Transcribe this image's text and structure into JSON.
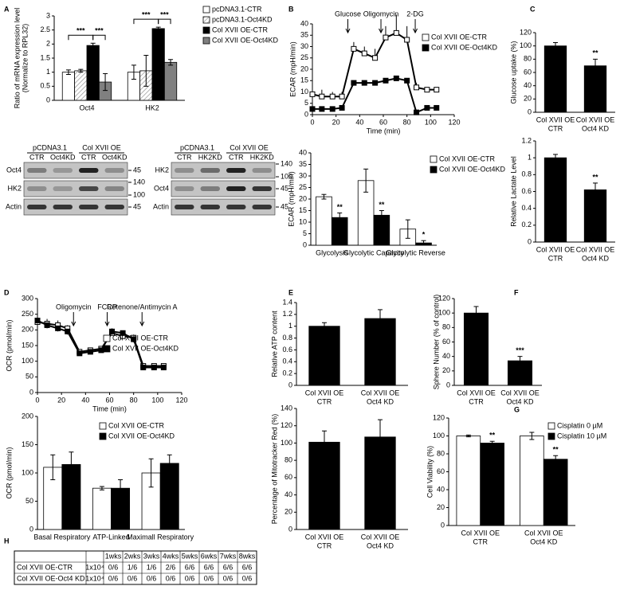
{
  "chart_data": [
    {
      "panel": "A",
      "type": "bar",
      "ylabel": [
        "Ratio of mRNA expression level",
        "(Normalize to RPL32)"
      ],
      "categories": [
        "Oct4",
        "HK2"
      ],
      "ylim": [
        0,
        3
      ],
      "yticks": [
        0,
        0.5,
        1,
        1.5,
        2,
        2.5,
        3
      ],
      "brackets": true,
      "series": [
        {
          "name": "pcDNA3.1-CTR",
          "color": "#ffffff",
          "values": [
            1.0,
            1.0
          ],
          "errors": [
            0.08,
            0.25
          ]
        },
        {
          "name": "pcDNA3.1-Oct4KD",
          "color": "#dddddd",
          "pattern": "hatch",
          "values": [
            1.05,
            1.05
          ],
          "errors": [
            0.05,
            0.55
          ]
        },
        {
          "name": "Col XVII OE-CTR",
          "color": "#000000",
          "values": [
            1.95,
            2.55
          ],
          "errors": [
            0.08,
            0.05
          ],
          "significance": [
            "***",
            "***"
          ]
        },
        {
          "name": "Col XVII OE-Oct4KD",
          "color": "#808080",
          "values": [
            0.65,
            1.35
          ],
          "errors": [
            0.3,
            0.1
          ],
          "significance": [
            "***",
            "***"
          ]
        }
      ]
    },
    {
      "panel": "B",
      "type": "line",
      "ylabel": "ECAR (mpH/min)",
      "xlabel": "Time (min)",
      "xlim": [
        0,
        120
      ],
      "xticks": [
        0,
        20,
        40,
        60,
        80,
        100,
        120
      ],
      "ylim": [
        0,
        40
      ],
      "yticks": [
        0,
        5,
        10,
        15,
        20,
        25,
        30,
        35,
        40
      ],
      "x": [
        0,
        8,
        17,
        25,
        35,
        44,
        53,
        62,
        71,
        80,
        88,
        97,
        105
      ],
      "annotations": [
        {
          "text": "Glucose",
          "x": 30
        },
        {
          "text": "Oligomycin",
          "x": 58
        },
        {
          "text": "2-DG",
          "x": 87
        }
      ],
      "series": [
        {
          "name": "Col XVII OE-CTR",
          "color": "#ffffff",
          "values": [
            9,
            8,
            8,
            8,
            29,
            27,
            25,
            34,
            36,
            33,
            12,
            11,
            11
          ],
          "errors": [
            3,
            3,
            2,
            2,
            3,
            3,
            4,
            5,
            8,
            6,
            2,
            1,
            1
          ]
        },
        {
          "name": "Col XVII OE-Oct4KD",
          "color": "#000000",
          "values": [
            2.5,
            2.5,
            2.5,
            3,
            14,
            14,
            14,
            15,
            16,
            15,
            1,
            3,
            3
          ],
          "errors": [
            1,
            1,
            1,
            1,
            1,
            1,
            1,
            1,
            1,
            1,
            1,
            1,
            1
          ]
        }
      ]
    },
    {
      "type": "bar",
      "ylabel": "ECAR (mpH/min)",
      "categories": [
        "Glycolysis",
        "Glycolytic Capacity",
        "Glycolytic Reverse"
      ],
      "ylim": [
        0,
        40
      ],
      "yticks": [
        0,
        5,
        10,
        15,
        20,
        25,
        30,
        35,
        40
      ],
      "series": [
        {
          "name": "Col XVII OE-CTR",
          "color": "#ffffff",
          "values": [
            21,
            28,
            7
          ],
          "errors": [
            1,
            5,
            4
          ]
        },
        {
          "name": "Col XVII OE-Oct4KD",
          "color": "#000000",
          "values": [
            12,
            13,
            1
          ],
          "errors": [
            2,
            2,
            1
          ],
          "significance": [
            "**",
            "**",
            "*"
          ]
        }
      ]
    },
    {
      "panel": "C",
      "type": "bar",
      "ylabel": "Glucose uptake (%)",
      "categories": [
        [
          "Col XVII OE",
          "CTR"
        ],
        [
          "Col XVII OE",
          "Oct4 KD"
        ]
      ],
      "ylim": [
        0,
        120
      ],
      "yticks": [
        0,
        20,
        40,
        60,
        80,
        100,
        120
      ],
      "series": [
        {
          "color": "#000000",
          "values": [
            100,
            70
          ],
          "errors": [
            5,
            10
          ],
          "significance": [
            null,
            "**"
          ]
        }
      ]
    },
    {
      "type": "bar",
      "ylabel": "Relative Lactate Level",
      "categories": [
        [
          "Col XVII OE",
          "CTR"
        ],
        [
          "Col XVII OE",
          "Oct4 KD"
        ]
      ],
      "ylim": [
        0,
        1.2
      ],
      "yticks": [
        0,
        0.2,
        0.4,
        0.6,
        0.8,
        1,
        1.2
      ],
      "series": [
        {
          "color": "#000000",
          "values": [
            1.0,
            0.62
          ],
          "errors": [
            0.04,
            0.08
          ],
          "significance": [
            null,
            "**"
          ]
        }
      ]
    },
    {
      "panel": "D",
      "type": "line",
      "ylabel": "OCR (pmol/min)",
      "xlabel": "Time (min)",
      "xlim": [
        0,
        120
      ],
      "xticks": [
        0,
        20,
        40,
        60,
        80,
        100,
        120
      ],
      "ylim": [
        0,
        300
      ],
      "yticks": [
        0,
        50,
        100,
        150,
        200,
        250,
        300
      ],
      "x": [
        0,
        8,
        17,
        25,
        35,
        44,
        53,
        62,
        71,
        80,
        88,
        97,
        105
      ],
      "annotations": [
        {
          "text": "Oligomycin",
          "x": 30
        },
        {
          "text": "FCCP",
          "x": 58
        },
        {
          "text": "Rotenone/Antimycin A",
          "x": 87
        }
      ],
      "series": [
        {
          "name": "Col XVII OE-CTR",
          "color": "#ffffff",
          "values": [
            225,
            220,
            215,
            205,
            130,
            135,
            140,
            190,
            180,
            175,
            85,
            85,
            85
          ],
          "errors": [
            15,
            15,
            15,
            10,
            8,
            8,
            8,
            15,
            15,
            10,
            8,
            8,
            8
          ]
        },
        {
          "name": "Col XVII OE-Oct4KD",
          "color": "#000000",
          "values": [
            230,
            215,
            205,
            195,
            125,
            130,
            135,
            195,
            190,
            170,
            80,
            80,
            80
          ],
          "errors": [
            10,
            10,
            10,
            10,
            5,
            5,
            5,
            10,
            10,
            10,
            5,
            5,
            5
          ]
        }
      ]
    },
    {
      "type": "bar",
      "ylabel": "OCR (pmol/min)",
      "categories": [
        "Basal Respiratory",
        "ATP-Linked",
        "Maximall Respiratory"
      ],
      "ylim": [
        0,
        200
      ],
      "yticks": [
        0,
        50,
        100,
        150,
        200
      ],
      "series": [
        {
          "name": "Col XVII OE-CTR",
          "color": "#ffffff",
          "values": [
            110,
            73,
            100
          ],
          "errors": [
            22,
            3,
            25
          ]
        },
        {
          "name": "Col XVII OE-Oct4KD",
          "color": "#000000",
          "values": [
            115,
            73,
            117
          ],
          "errors": [
            22,
            15,
            15
          ]
        }
      ]
    },
    {
      "panel": "E",
      "type": "bar",
      "ylabel": "Relative ATP content",
      "categories": [
        [
          "Col XVII OE",
          "CTR"
        ],
        [
          "Col XVII OE",
          "Oct4 KD"
        ]
      ],
      "ylim": [
        0,
        1.4
      ],
      "yticks": [
        0,
        0.2,
        0.4,
        0.6,
        0.8,
        1,
        1.2,
        1.4
      ],
      "series": [
        {
          "color": "#000000",
          "values": [
            1.0,
            1.13
          ],
          "errors": [
            0.06,
            0.15
          ]
        }
      ]
    },
    {
      "type": "bar",
      "ylabel": "Percentage of Mitotracker Red (%)",
      "categories": [
        [
          "Col XVII OE",
          "CTR"
        ],
        [
          "Col XVII OE",
          "Oct4 KD"
        ]
      ],
      "ylim": [
        0,
        140
      ],
      "yticks": [
        0,
        20,
        40,
        60,
        80,
        100,
        120,
        140
      ],
      "series": [
        {
          "color": "#000000",
          "values": [
            101,
            107
          ],
          "errors": [
            13,
            20
          ]
        }
      ]
    },
    {
      "panel": "F",
      "type": "bar",
      "ylabel": "Sphere Number (% of control)",
      "categories": [
        [
          "Col XVII OE",
          "CTR"
        ],
        [
          "Col XVII OE",
          "Oct4 KD"
        ]
      ],
      "ylim": [
        0,
        120
      ],
      "yticks": [
        0,
        20,
        40,
        60,
        80,
        100,
        120
      ],
      "series": [
        {
          "color": "#000000",
          "values": [
            100,
            34
          ],
          "errors": [
            9,
            6
          ],
          "significance": [
            null,
            "***"
          ]
        }
      ]
    },
    {
      "panel": "G",
      "type": "bar",
      "ylabel": "Cell Viability (%)",
      "categories": [
        [
          "Col XVII OE",
          "CTR"
        ],
        [
          "Col XVII OE",
          "Oct4 KD"
        ]
      ],
      "ylim": [
        0,
        120
      ],
      "yticks": [
        0,
        20,
        40,
        60,
        80,
        100,
        120
      ],
      "series": [
        {
          "name": "Cisplatin 0 µM",
          "color": "#ffffff",
          "values": [
            100,
            100
          ],
          "errors": [
            1,
            4
          ]
        },
        {
          "name": "Cisplatin 10 µM",
          "color": "#000000",
          "values": [
            92,
            74
          ],
          "errors": [
            2,
            4
          ],
          "significance": [
            "**",
            "**"
          ]
        }
      ]
    }
  ],
  "blots": [
    {
      "groups": [
        "pCDNA3.1",
        "Col XVII OE"
      ],
      "lanes": [
        "CTR",
        "Oct4KD",
        "CTR",
        "Oct4KD"
      ],
      "rows": [
        {
          "name": "Oct4",
          "markers": [
            "45"
          ]
        },
        {
          "name": "HK2",
          "markers": [
            "140",
            "100"
          ]
        },
        {
          "name": "Actin",
          "markers": [
            "45"
          ]
        }
      ]
    },
    {
      "groups": [
        "pCDNA3.1",
        "Col XVII OE"
      ],
      "lanes": [
        "CTR",
        "HK2KD",
        "CTR",
        "HK2KD"
      ],
      "rows": [
        {
          "name": "HK2",
          "markers": [
            "140",
            "100"
          ]
        },
        {
          "name": "Oct4",
          "markers": [
            "45"
          ]
        },
        {
          "name": "Actin",
          "markers": [
            "45"
          ]
        }
      ]
    }
  ],
  "table": {
    "panel": "H",
    "header": [
      "1wks",
      "2wks",
      "3wks",
      "4wks",
      "5wks",
      "6wks",
      "7wks",
      "8wks"
    ],
    "rows": [
      [
        "Col XVII OE-CTR",
        "1x10⁴",
        "0/6",
        "1/6",
        "1/6",
        "2/6",
        "6/6",
        "6/6",
        "6/6",
        "6/6"
      ],
      [
        "Col XVII OE-Oct4 KD",
        "1x10⁴",
        "0/6",
        "0/6",
        "0/6",
        "0/6",
        "0/6",
        "0/6",
        "0/6",
        "0/6"
      ]
    ]
  }
}
